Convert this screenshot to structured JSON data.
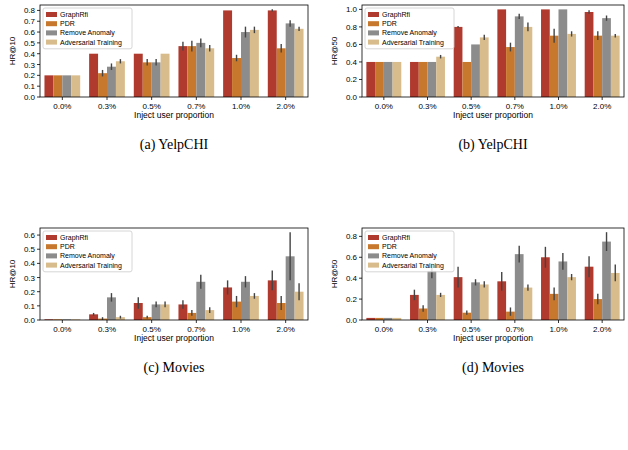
{
  "chart_data": [
    {
      "type": "bar",
      "title": "(a) YelpCHI",
      "x_label": "Inject user proportion",
      "y_label": "HR@10",
      "categories": [
        "0.0%",
        "0.3%",
        "0.5%",
        "0.7%",
        "1.0%",
        "2.0%"
      ],
      "series": [
        {
          "name": "GraphRfi",
          "color": "#b03a2e",
          "values": [
            0.2,
            0.4,
            0.4,
            0.47,
            0.8,
            0.8
          ],
          "errors": [
            0,
            0,
            0,
            0.04,
            0,
            0.01
          ]
        },
        {
          "name": "PDR",
          "color": "#c8782c",
          "values": [
            0.2,
            0.22,
            0.32,
            0.47,
            0.36,
            0.45
          ],
          "errors": [
            0,
            0.03,
            0.03,
            0.05,
            0.03,
            0.04
          ]
        },
        {
          "name": "Remove Anomaly",
          "color": "#8c8c8c",
          "values": [
            0.2,
            0.28,
            0.32,
            0.5,
            0.6,
            0.68
          ],
          "errors": [
            0,
            0.03,
            0.03,
            0.04,
            0.05,
            0.03
          ]
        },
        {
          "name": "Adversarial Training",
          "color": "#d9bc8c",
          "values": [
            0.2,
            0.33,
            0.4,
            0.45,
            0.62,
            0.63
          ],
          "errors": [
            0,
            0.02,
            0,
            0.03,
            0.03,
            0.02
          ]
        }
      ],
      "ylim": [
        0,
        0.85
      ],
      "yticks": [
        {
          "value": 0,
          "label": "0.0"
        },
        {
          "value": 0.1,
          "label": "0.1"
        },
        {
          "value": 0.2,
          "label": "0.2"
        },
        {
          "value": 0.3,
          "label": "0.3"
        },
        {
          "value": 0.4,
          "label": "0.4"
        },
        {
          "value": 0.5,
          "label": "0.5"
        },
        {
          "value": 0.6,
          "label": "0.6"
        },
        {
          "value": 0.7,
          "label": "0.7"
        },
        {
          "value": 0.8,
          "label": "0.8"
        }
      ],
      "legend": "upper left",
      "grid": false
    },
    {
      "type": "bar",
      "title": "(b) YelpCHI",
      "x_label": "Inject user proportion",
      "y_label": "HR@50",
      "categories": [
        "0.0%",
        "0.3%",
        "0.5%",
        "0.7%",
        "1.0%",
        "2.0%"
      ],
      "series": [
        {
          "name": "GraphRfi",
          "color": "#b03a2e",
          "values": [
            0.4,
            0.4,
            0.8,
            1.0,
            1.0,
            0.97
          ],
          "errors": [
            0,
            0,
            0.01,
            0,
            0,
            0.02
          ]
        },
        {
          "name": "PDR",
          "color": "#c8782c",
          "values": [
            0.4,
            0.4,
            0.4,
            0.57,
            0.7,
            0.7
          ],
          "errors": [
            0,
            0,
            0,
            0.05,
            0.08,
            0.05
          ]
        },
        {
          "name": "Remove Anomaly",
          "color": "#8c8c8c",
          "values": [
            0.4,
            0.4,
            0.6,
            0.92,
            1.0,
            0.9
          ],
          "errors": [
            0,
            0,
            0,
            0.03,
            0,
            0.03
          ]
        },
        {
          "name": "Adversarial Training",
          "color": "#d9bc8c",
          "values": [
            0.4,
            0.46,
            0.68,
            0.8,
            0.72,
            0.7
          ],
          "errors": [
            0,
            0.02,
            0.03,
            0.05,
            0.03,
            0.02
          ]
        }
      ],
      "ylim": [
        0,
        1.05
      ],
      "yticks": [
        {
          "value": 0,
          "label": "0.0"
        },
        {
          "value": 0.2,
          "label": "0.2"
        },
        {
          "value": 0.4,
          "label": "0.4"
        },
        {
          "value": 0.6,
          "label": "0.6"
        },
        {
          "value": 0.8,
          "label": "0.8"
        },
        {
          "value": 1.0,
          "label": "1.0"
        }
      ],
      "legend": "upper left",
      "grid": false
    },
    {
      "type": "bar",
      "title": "(c) Movies",
      "x_label": "Inject user proportion",
      "y_label": "HR@10",
      "categories": [
        "0.0%",
        "0.3%",
        "0.5%",
        "0.7%",
        "1.0%",
        "2.0%"
      ],
      "series": [
        {
          "name": "GraphRfi",
          "color": "#b03a2e",
          "values": [
            0.005,
            0.04,
            0.12,
            0.11,
            0.23,
            0.28
          ],
          "errors": [
            0,
            0.01,
            0.04,
            0.03,
            0.05,
            0.07
          ]
        },
        {
          "name": "PDR",
          "color": "#c8782c",
          "values": [
            0.005,
            0.01,
            0.02,
            0.05,
            0.13,
            0.12
          ],
          "errors": [
            0,
            0.01,
            0.01,
            0.02,
            0.04,
            0.05
          ]
        },
        {
          "name": "Remove Anomaly",
          "color": "#8c8c8c",
          "values": [
            0.005,
            0.16,
            0.11,
            0.27,
            0.27,
            0.45
          ],
          "errors": [
            0,
            0.03,
            0.02,
            0.05,
            0.04,
            0.17
          ]
        },
        {
          "name": "Adversarial Training",
          "color": "#d9bc8c",
          "values": [
            0.005,
            0.02,
            0.11,
            0.07,
            0.17,
            0.2
          ],
          "errors": [
            0,
            0.01,
            0.02,
            0.02,
            0.02,
            0.06
          ]
        }
      ],
      "ylim": [
        0,
        0.65
      ],
      "yticks": [
        {
          "value": 0,
          "label": "0.0"
        },
        {
          "value": 0.1,
          "label": "0.1"
        },
        {
          "value": 0.2,
          "label": "0.2"
        },
        {
          "value": 0.3,
          "label": "0.3"
        },
        {
          "value": 0.4,
          "label": "0.4"
        },
        {
          "value": 0.5,
          "label": "0.5"
        },
        {
          "value": 0.6,
          "label": "0.6"
        }
      ],
      "legend": "upper left",
      "grid": false
    },
    {
      "type": "bar",
      "title": "(d) Movies",
      "x_label": "Inject user proportion",
      "y_label": "HR@50",
      "categories": [
        "0.0%",
        "0.3%",
        "0.5%",
        "0.7%",
        "1.0%",
        "2.0%"
      ],
      "series": [
        {
          "name": "GraphRfi",
          "color": "#b03a2e",
          "values": [
            0.02,
            0.24,
            0.41,
            0.37,
            0.6,
            0.51
          ],
          "errors": [
            0,
            0.05,
            0.1,
            0.09,
            0.1,
            0.1
          ]
        },
        {
          "name": "PDR",
          "color": "#c8782c",
          "values": [
            0.02,
            0.11,
            0.07,
            0.08,
            0.25,
            0.2
          ],
          "errors": [
            0,
            0.03,
            0.02,
            0.04,
            0.06,
            0.05
          ]
        },
        {
          "name": "Remove Anomaly",
          "color": "#8c8c8c",
          "values": [
            0.02,
            0.47,
            0.36,
            0.63,
            0.56,
            0.75
          ],
          "errors": [
            0,
            0.07,
            0.03,
            0.08,
            0.08,
            0.09
          ]
        },
        {
          "name": "Adversarial Training",
          "color": "#d9bc8c",
          "values": [
            0.02,
            0.24,
            0.34,
            0.31,
            0.41,
            0.45
          ],
          "errors": [
            0,
            0.02,
            0.03,
            0.03,
            0.03,
            0.08
          ]
        }
      ],
      "ylim": [
        0,
        0.88
      ],
      "yticks": [
        {
          "value": 0,
          "label": "0.0"
        },
        {
          "value": 0.2,
          "label": "0.2"
        },
        {
          "value": 0.4,
          "label": "0.4"
        },
        {
          "value": 0.6,
          "label": "0.6"
        },
        {
          "value": 0.8,
          "label": "0.8"
        }
      ],
      "legend": "upper left",
      "grid": false
    }
  ]
}
